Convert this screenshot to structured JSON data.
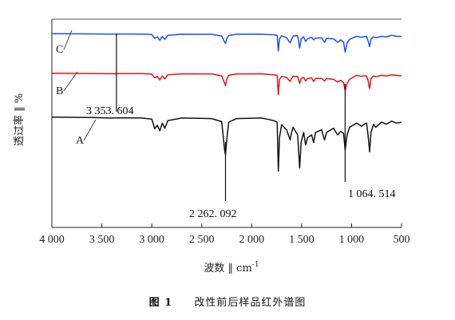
{
  "chart_data": {
    "type": "line",
    "xlabel": "波数 ‖ cm",
    "xlabel_sup": "-1",
    "ylabel": "透过率 ‖ %",
    "x_reversed": true,
    "xlim": [
      4000,
      500
    ],
    "x_ticks": [
      4000,
      3500,
      3000,
      2500,
      2000,
      1500,
      1000,
      500
    ],
    "x_tick_labels": [
      "4 000",
      "3 500",
      "3 000",
      "2 500",
      "2 000",
      "1 500",
      "1 000",
      "500"
    ],
    "y_ticks_shown": false,
    "grid": false,
    "series": [
      {
        "name": "C",
        "color": "#1f4ff0",
        "offset": 0.93,
        "points": [
          [
            4000,
            0
          ],
          [
            3600,
            -0.003
          ],
          [
            3420,
            -0.008
          ],
          [
            3300,
            -0.005
          ],
          [
            3100,
            -0.006
          ],
          [
            3000,
            -0.015
          ],
          [
            2970,
            -0.09
          ],
          [
            2945,
            -0.06
          ],
          [
            2920,
            -0.13
          ],
          [
            2895,
            -0.05
          ],
          [
            2870,
            -0.11
          ],
          [
            2840,
            -0.03
          ],
          [
            2700,
            -0.01
          ],
          [
            2400,
            -0.012
          ],
          [
            2300,
            -0.045
          ],
          [
            2270,
            -0.17
          ],
          [
            2262,
            -0.19
          ],
          [
            2250,
            -0.1
          ],
          [
            2230,
            -0.035
          ],
          [
            2150,
            -0.01
          ],
          [
            1900,
            -0.008
          ],
          [
            1850,
            -0.015
          ],
          [
            1780,
            -0.02
          ],
          [
            1745,
            -0.03
          ],
          [
            1733,
            -0.34
          ],
          [
            1722,
            -0.1
          ],
          [
            1700,
            -0.04
          ],
          [
            1650,
            -0.08
          ],
          [
            1615,
            -0.18
          ],
          [
            1600,
            -0.11
          ],
          [
            1585,
            -0.045
          ],
          [
            1540,
            -0.04
          ],
          [
            1520,
            -0.28
          ],
          [
            1505,
            -0.1
          ],
          [
            1480,
            -0.06
          ],
          [
            1460,
            -0.15
          ],
          [
            1440,
            -0.1
          ],
          [
            1400,
            -0.07
          ],
          [
            1380,
            -0.12
          ],
          [
            1360,
            -0.085
          ],
          [
            1300,
            -0.08
          ],
          [
            1270,
            -0.17
          ],
          [
            1250,
            -0.09
          ],
          [
            1180,
            -0.1
          ],
          [
            1140,
            -0.17
          ],
          [
            1110,
            -0.12
          ],
          [
            1080,
            -0.16
          ],
          [
            1064,
            -0.36
          ],
          [
            1045,
            -0.18
          ],
          [
            1020,
            -0.11
          ],
          [
            950,
            -0.05
          ],
          [
            900,
            -0.07
          ],
          [
            880,
            -0.06
          ],
          [
            850,
            -0.05
          ],
          [
            835,
            -0.14
          ],
          [
            820,
            -0.25
          ],
          [
            805,
            -0.1
          ],
          [
            780,
            -0.06
          ],
          [
            760,
            -0.08
          ],
          [
            700,
            -0.05
          ],
          [
            650,
            -0.06
          ],
          [
            600,
            -0.03
          ],
          [
            550,
            -0.05
          ],
          [
            500,
            -0.05
          ]
        ]
      },
      {
        "name": "B",
        "color": "#e8101a",
        "offset": 0.74,
        "points": [
          [
            4000,
            0
          ],
          [
            3600,
            -0.003
          ],
          [
            3420,
            -0.009
          ],
          [
            3300,
            -0.005
          ],
          [
            3100,
            -0.006
          ],
          [
            3000,
            -0.015
          ],
          [
            2970,
            -0.09
          ],
          [
            2945,
            -0.06
          ],
          [
            2920,
            -0.13
          ],
          [
            2895,
            -0.05
          ],
          [
            2870,
            -0.11
          ],
          [
            2840,
            -0.03
          ],
          [
            2700,
            -0.01
          ],
          [
            2400,
            -0.012
          ],
          [
            2300,
            -0.05
          ],
          [
            2270,
            -0.2
          ],
          [
            2262,
            -0.24
          ],
          [
            2250,
            -0.12
          ],
          [
            2230,
            -0.04
          ],
          [
            2150,
            -0.012
          ],
          [
            1900,
            -0.01
          ],
          [
            1850,
            -0.02
          ],
          [
            1780,
            -0.03
          ],
          [
            1745,
            -0.04
          ],
          [
            1733,
            -0.42
          ],
          [
            1722,
            -0.12
          ],
          [
            1700,
            -0.06
          ],
          [
            1650,
            -0.08
          ],
          [
            1615,
            -0.16
          ],
          [
            1600,
            -0.1
          ],
          [
            1585,
            -0.06
          ],
          [
            1540,
            -0.06
          ],
          [
            1520,
            -0.2
          ],
          [
            1505,
            -0.1
          ],
          [
            1480,
            -0.08
          ],
          [
            1460,
            -0.15
          ],
          [
            1440,
            -0.1
          ],
          [
            1400,
            -0.09
          ],
          [
            1380,
            -0.16
          ],
          [
            1360,
            -0.1
          ],
          [
            1300,
            -0.1
          ],
          [
            1270,
            -0.15
          ],
          [
            1250,
            -0.1
          ],
          [
            1180,
            -0.12
          ],
          [
            1140,
            -0.17
          ],
          [
            1110,
            -0.14
          ],
          [
            1080,
            -0.18
          ],
          [
            1064,
            -0.34
          ],
          [
            1045,
            -0.2
          ],
          [
            1020,
            -0.12
          ],
          [
            950,
            -0.04
          ],
          [
            900,
            -0.06
          ],
          [
            880,
            -0.05
          ],
          [
            850,
            -0.05
          ],
          [
            835,
            -0.14
          ],
          [
            820,
            -0.3
          ],
          [
            805,
            -0.1
          ],
          [
            780,
            -0.05
          ],
          [
            760,
            -0.07
          ],
          [
            700,
            -0.04
          ],
          [
            650,
            -0.05
          ],
          [
            600,
            -0.03
          ],
          [
            550,
            -0.04
          ],
          [
            500,
            -0.05
          ]
        ]
      },
      {
        "name": "A",
        "color": "#111111",
        "offset": 0.53,
        "points": [
          [
            4000,
            0
          ],
          [
            3600,
            -0.01
          ],
          [
            3420,
            -0.02
          ],
          [
            3300,
            -0.015
          ],
          [
            3100,
            -0.02
          ],
          [
            3000,
            -0.04
          ],
          [
            2970,
            -0.23
          ],
          [
            2945,
            -0.16
          ],
          [
            2920,
            -0.27
          ],
          [
            2895,
            -0.12
          ],
          [
            2870,
            -0.22
          ],
          [
            2840,
            -0.07
          ],
          [
            2700,
            -0.02
          ],
          [
            2400,
            -0.03
          ],
          [
            2300,
            -0.09
          ],
          [
            2270,
            -0.66
          ],
          [
            2262,
            -0.74
          ],
          [
            2250,
            -0.45
          ],
          [
            2230,
            -0.1
          ],
          [
            2150,
            -0.03
          ],
          [
            1900,
            -0.02
          ],
          [
            1850,
            -0.04
          ],
          [
            1780,
            -0.07
          ],
          [
            1745,
            -0.1
          ],
          [
            1733,
            -1.06
          ],
          [
            1722,
            -0.4
          ],
          [
            1700,
            -0.15
          ],
          [
            1650,
            -0.25
          ],
          [
            1615,
            -0.45
          ],
          [
            1600,
            -0.3
          ],
          [
            1585,
            -0.2
          ],
          [
            1540,
            -0.35
          ],
          [
            1520,
            -1.0
          ],
          [
            1505,
            -0.5
          ],
          [
            1480,
            -0.3
          ],
          [
            1460,
            -0.55
          ],
          [
            1440,
            -0.4
          ],
          [
            1400,
            -0.35
          ],
          [
            1380,
            -0.5
          ],
          [
            1360,
            -0.3
          ],
          [
            1300,
            -0.25
          ],
          [
            1270,
            -0.45
          ],
          [
            1250,
            -0.3
          ],
          [
            1180,
            -0.22
          ],
          [
            1140,
            -0.35
          ],
          [
            1110,
            -0.28
          ],
          [
            1080,
            -0.32
          ],
          [
            1064,
            -0.65
          ],
          [
            1045,
            -0.35
          ],
          [
            1020,
            -0.2
          ],
          [
            950,
            -0.12
          ],
          [
            900,
            -0.18
          ],
          [
            880,
            -0.15
          ],
          [
            850,
            -0.12
          ],
          [
            835,
            -0.35
          ],
          [
            820,
            -0.68
          ],
          [
            805,
            -0.3
          ],
          [
            780,
            -0.14
          ],
          [
            760,
            -0.2
          ],
          [
            700,
            -0.1
          ],
          [
            650,
            -0.14
          ],
          [
            600,
            -0.08
          ],
          [
            550,
            -0.12
          ],
          [
            500,
            -0.1
          ]
        ]
      }
    ],
    "annotations": [
      {
        "text": "3 353. 604",
        "x": 3353.604
      },
      {
        "text": "2 262. 092",
        "x": 2262.092
      },
      {
        "text": "1 064. 514",
        "x": 1064.514
      }
    ]
  },
  "caption": {
    "figure_number": "图 1",
    "title": "改性前后样品红外谱图"
  }
}
